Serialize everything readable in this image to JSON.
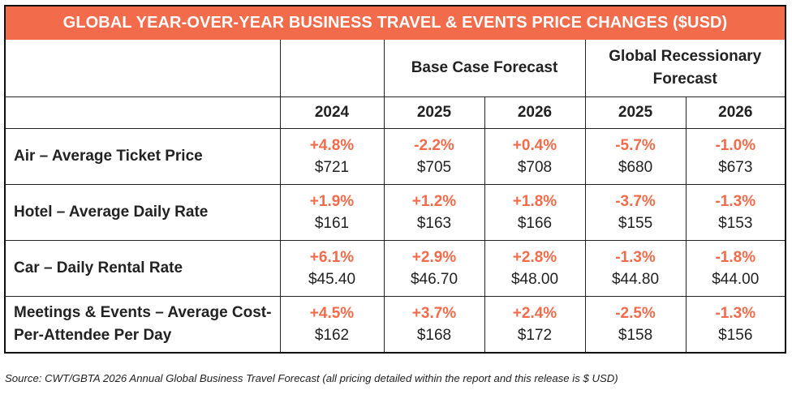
{
  "title": "GLOBAL YEAR-OVER-YEAR BUSINESS TRAVEL & EVENTS PRICE CHANGES ($USD)",
  "groups": {
    "base": "Base Case Forecast",
    "recession": "Global Recessionary Forecast"
  },
  "years": [
    "2024",
    "2025",
    "2026",
    "2025",
    "2026"
  ],
  "rows": [
    {
      "label": "Air – Average Ticket Price",
      "cells": [
        {
          "pct": "+4.8%",
          "price": "$721"
        },
        {
          "pct": "-2.2%",
          "price": "$705"
        },
        {
          "pct": "+0.4%",
          "price": "$708"
        },
        {
          "pct": "-5.7%",
          "price": "$680"
        },
        {
          "pct": "-1.0%",
          "price": "$673"
        }
      ]
    },
    {
      "label": "Hotel – Average Daily Rate",
      "cells": [
        {
          "pct": "+1.9%",
          "price": "$161"
        },
        {
          "pct": "+1.2%",
          "price": "$163"
        },
        {
          "pct": "+1.8%",
          "price": "$166"
        },
        {
          "pct": "-3.7%",
          "price": "$155"
        },
        {
          "pct": "-1.3%",
          "price": "$153"
        }
      ]
    },
    {
      "label": "Car – Daily Rental Rate",
      "cells": [
        {
          "pct": "+6.1%",
          "price": "$45.40"
        },
        {
          "pct": "+2.9%",
          "price": "$46.70"
        },
        {
          "pct": "+2.8%",
          "price": "$48.00"
        },
        {
          "pct": "-1.3%",
          "price": "$44.80"
        },
        {
          "pct": "-1.8%",
          "price": "$44.00"
        }
      ]
    },
    {
      "label": "Meetings & Events – Average Cost-Per-Attendee Per Day",
      "cells": [
        {
          "pct": "+4.5%",
          "price": "$162"
        },
        {
          "pct": "+3.7%",
          "price": "$168"
        },
        {
          "pct": "+2.4%",
          "price": "$172"
        },
        {
          "pct": "-2.5%",
          "price": "$158"
        },
        {
          "pct": "-1.3%",
          "price": "$156"
        }
      ]
    }
  ],
  "source": "Source: CWT/GBTA 2026 Annual Global Business Travel Forecast (all pricing detailed within the report and this release is $ USD)",
  "colors": {
    "accent": "#f26b4a",
    "text": "#222222",
    "border": "#111111"
  }
}
